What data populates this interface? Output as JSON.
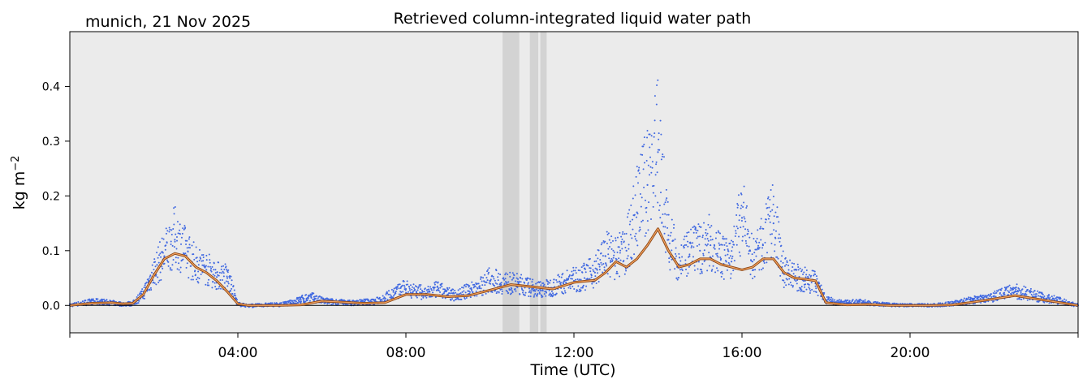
{
  "chart_data": {
    "type": "scatter",
    "title": "Retrieved column-integrated liquid water path",
    "subtitle": "munich, 21 Nov 2025",
    "xlabel": "Time (UTC)",
    "ylabel_main": "kg m",
    "ylabel_exp": "−2",
    "x_unit": "hours UTC",
    "xlim": [
      0,
      24
    ],
    "ylim": [
      -0.05,
      0.5
    ],
    "grid": false,
    "zero_line": true,
    "x_ticks": [
      {
        "value": 0,
        "label": ""
      },
      {
        "value": 4,
        "label": "04:00"
      },
      {
        "value": 8,
        "label": "08:00"
      },
      {
        "value": 12,
        "label": "12:00"
      },
      {
        "value": 16,
        "label": "16:00"
      },
      {
        "value": 20,
        "label": "20:00"
      },
      {
        "value": 24,
        "label": ""
      }
    ],
    "y_ticks": [
      {
        "value": 0.0,
        "label": "0.0"
      },
      {
        "value": 0.1,
        "label": "0.1"
      },
      {
        "value": 0.2,
        "label": "0.2"
      },
      {
        "value": 0.3,
        "label": "0.3"
      },
      {
        "value": 0.4,
        "label": "0.4"
      }
    ],
    "shaded_intervals": [
      [
        10.3,
        10.7
      ],
      [
        10.95,
        11.15
      ],
      [
        11.2,
        11.35
      ]
    ],
    "colors": {
      "background": "#ebebeb",
      "shade": "#d3d3d3",
      "points": "#4169e1",
      "smoothed_outline": "#8b4513",
      "smoothed_line": "#f4a460",
      "zero_line": "#000000"
    },
    "series": [
      {
        "kind": "scatter",
        "x": [
          0.0,
          0.25,
          0.5,
          0.75,
          1.0,
          1.25,
          1.5,
          1.75,
          2.0,
          2.25,
          2.5,
          2.75,
          3.0,
          3.25,
          3.5,
          3.75,
          4.0,
          4.25,
          4.5,
          4.75,
          5.0,
          5.25,
          5.5,
          5.75,
          6.0,
          6.25,
          6.5,
          6.75,
          7.0,
          7.25,
          7.5,
          7.75,
          8.0,
          8.25,
          8.5,
          8.75,
          9.0,
          9.25,
          9.5,
          9.75,
          10.0,
          10.25,
          10.5,
          10.75,
          11.0,
          11.25,
          11.5,
          11.75,
          12.0,
          12.25,
          12.5,
          12.75,
          13.0,
          13.25,
          13.5,
          13.75,
          14.0,
          14.25,
          14.5,
          14.75,
          15.0,
          15.25,
          15.5,
          15.75,
          16.0,
          16.25,
          16.5,
          16.75,
          17.0,
          17.25,
          17.5,
          17.75,
          18.0,
          18.25,
          18.5,
          18.75,
          19.0,
          19.25,
          19.5,
          19.75,
          20.0,
          20.25,
          20.5,
          20.75,
          21.0,
          21.25,
          21.5,
          21.75,
          22.0,
          22.25,
          22.5,
          22.75,
          23.0,
          23.25,
          23.5,
          23.75,
          24.0
        ],
        "y": [
          0.0,
          0.003,
          0.006,
          0.006,
          0.004,
          0.002,
          0.003,
          0.02,
          0.058,
          0.09,
          0.12,
          0.095,
          0.072,
          0.065,
          0.052,
          0.05,
          0.002,
          -0.001,
          0.0,
          0.001,
          0.001,
          0.004,
          0.01,
          0.014,
          0.008,
          0.006,
          0.005,
          0.004,
          0.006,
          0.006,
          0.013,
          0.022,
          0.03,
          0.025,
          0.02,
          0.028,
          0.02,
          0.018,
          0.026,
          0.032,
          0.045,
          0.04,
          0.038,
          0.036,
          0.03,
          0.028,
          0.032,
          0.04,
          0.045,
          0.05,
          0.06,
          0.09,
          0.08,
          0.1,
          0.17,
          0.22,
          0.28,
          0.12,
          0.075,
          0.09,
          0.1,
          0.11,
          0.085,
          0.08,
          0.16,
          0.08,
          0.11,
          0.15,
          0.06,
          0.05,
          0.045,
          0.04,
          0.01,
          0.005,
          0.004,
          0.006,
          0.004,
          0.002,
          0.001,
          0.0,
          0.0,
          0.0,
          0.0,
          0.001,
          0.003,
          0.006,
          0.009,
          0.012,
          0.016,
          0.02,
          0.025,
          0.021,
          0.016,
          0.012,
          0.009,
          0.004,
          0.0
        ]
      },
      {
        "kind": "line",
        "x": [
          0.0,
          0.5,
          1.0,
          1.25,
          1.5,
          1.75,
          2.0,
          2.25,
          2.5,
          2.75,
          3.0,
          3.25,
          3.5,
          3.75,
          4.0,
          4.25,
          4.5,
          5.0,
          5.5,
          6.0,
          6.5,
          7.0,
          7.5,
          8.0,
          8.5,
          9.0,
          9.5,
          10.0,
          10.5,
          11.0,
          11.5,
          12.0,
          12.5,
          12.75,
          13.0,
          13.25,
          13.5,
          13.75,
          14.0,
          14.25,
          14.5,
          14.75,
          15.0,
          15.25,
          15.5,
          15.75,
          16.0,
          16.25,
          16.5,
          16.75,
          17.0,
          17.25,
          17.5,
          17.75,
          18.0,
          18.5,
          19.0,
          19.5,
          20.0,
          20.5,
          21.0,
          21.5,
          22.0,
          22.5,
          23.0,
          23.5,
          24.0
        ],
        "y": [
          0.0,
          0.004,
          0.005,
          0.003,
          0.004,
          0.02,
          0.055,
          0.085,
          0.095,
          0.09,
          0.07,
          0.06,
          0.045,
          0.025,
          0.003,
          0.0,
          0.0,
          0.0,
          0.001,
          0.008,
          0.006,
          0.004,
          0.005,
          0.02,
          0.02,
          0.016,
          0.018,
          0.028,
          0.038,
          0.034,
          0.03,
          0.042,
          0.046,
          0.06,
          0.08,
          0.07,
          0.085,
          0.11,
          0.14,
          0.1,
          0.07,
          0.075,
          0.085,
          0.085,
          0.075,
          0.07,
          0.065,
          0.07,
          0.085,
          0.085,
          0.06,
          0.05,
          0.048,
          0.045,
          0.005,
          0.001,
          0.002,
          0.0,
          0.0,
          0.0,
          0.001,
          0.006,
          0.012,
          0.018,
          0.012,
          0.006,
          0.0
        ]
      }
    ]
  }
}
